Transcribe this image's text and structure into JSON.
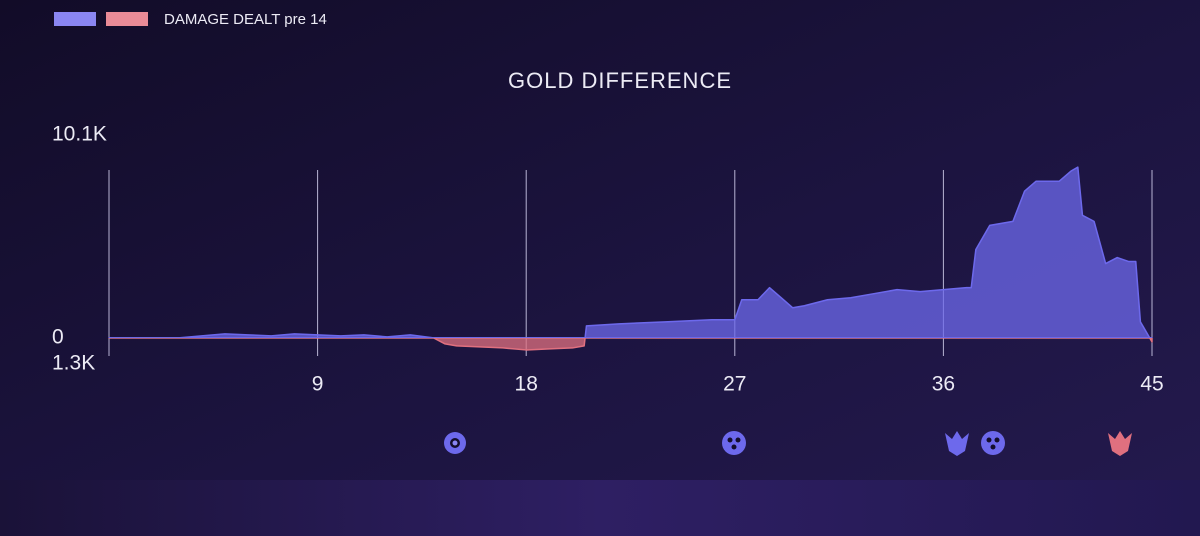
{
  "chart_data": {
    "type": "area",
    "title": "GOLD DIFFERENCE",
    "legend": {
      "colors": [
        "#8a86f2",
        "#e98b97"
      ],
      "label": "DAMAGE DEALT pre 14"
    },
    "color": "#6d69ec",
    "negative_color": "#e0707f",
    "x": [
      0,
      3,
      4,
      5,
      6,
      7,
      8,
      9,
      10,
      11,
      12,
      13,
      14,
      14.5,
      15,
      16,
      17,
      18,
      19,
      20,
      20.5,
      20.6,
      22,
      24,
      26,
      27,
      27.3,
      28,
      28.5,
      29,
      29.5,
      30,
      31,
      32,
      33,
      34,
      35,
      36,
      37,
      37.2,
      37.4,
      38,
      39,
      39.5,
      40,
      41,
      41.5,
      41.8,
      42,
      42.5,
      43,
      43.5,
      44,
      44.3,
      44.5,
      45
    ],
    "series": [
      {
        "values": [
          0,
          0,
          100,
          200,
          150,
          100,
          200,
          150,
          100,
          150,
          50,
          150,
          0,
          -300,
          -400,
          -450,
          -500,
          -600,
          -550,
          -500,
          -400,
          600,
          700,
          800,
          900,
          900,
          1900,
          1900,
          2500,
          2000,
          1500,
          1600,
          1900,
          2000,
          2200,
          2400,
          2300,
          2400,
          2500,
          2500,
          4400,
          5600,
          5800,
          7300,
          7800,
          7800,
          8300,
          8500,
          6100,
          5800,
          3700,
          4000,
          3800,
          3800,
          800,
          -200
        ]
      }
    ],
    "xlim": [
      0,
      45
    ],
    "xticks": [
      9,
      18,
      27,
      36,
      45
    ],
    "ylim": [
      -1300,
      10100
    ],
    "yticks": [
      {
        "value": 10100,
        "label": "10.1K"
      },
      0,
      {
        "value": -1300,
        "label": "1.3K"
      }
    ],
    "grid": true
  }
}
